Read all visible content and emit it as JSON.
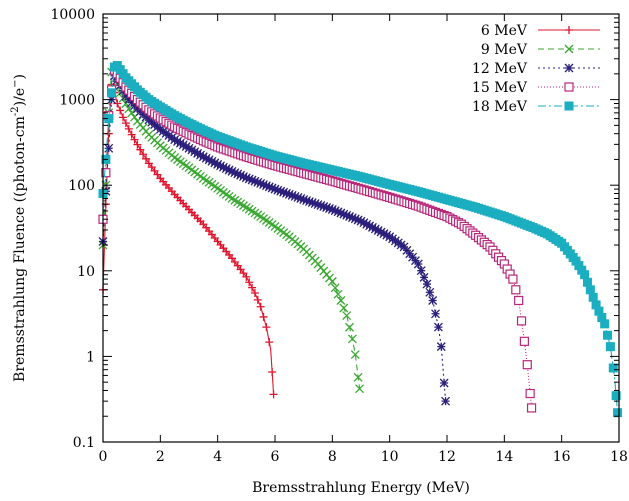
{
  "chart_data": {
    "type": "line",
    "xlabel": "Bremsstrahlung Energy (MeV)",
    "ylabel_parts": [
      "Bremsstrahlung Fluence ((photon-cm",
      "-2",
      ")/e",
      "−",
      ")"
    ],
    "xlim": [
      0,
      18
    ],
    "ylim": [
      0.1,
      10000
    ],
    "yscale": "log",
    "grid": false,
    "legend_position": "top-right",
    "x_ticks": [
      "0",
      "2",
      "4",
      "6",
      "8",
      "10",
      "12",
      "14",
      "16",
      "18"
    ],
    "y_ticks": [
      "0.1",
      "1",
      "10",
      "100",
      "1000",
      "10000"
    ],
    "series": [
      {
        "name": "6 MeV",
        "color": "#e0142c",
        "marker": "plus",
        "dash": "",
        "points": [
          [
            0,
            6
          ],
          [
            0.1,
            60
          ],
          [
            0.2,
            400
          ],
          [
            0.3,
            1500
          ],
          [
            0.35,
            1400
          ],
          [
            0.5,
            900
          ],
          [
            0.7,
            620
          ],
          [
            1.0,
            390
          ],
          [
            1.3,
            260
          ],
          [
            1.6,
            180
          ],
          [
            2.0,
            120
          ],
          [
            2.5,
            78
          ],
          [
            3.0,
            52
          ],
          [
            3.5,
            35
          ],
          [
            4.0,
            22
          ],
          [
            4.5,
            14
          ],
          [
            5.0,
            8.5
          ],
          [
            5.3,
            5.5
          ],
          [
            5.5,
            3.8
          ],
          [
            5.7,
            2.2
          ],
          [
            5.85,
            1.2
          ],
          [
            5.95,
            0.36
          ]
        ]
      },
      {
        "name": "9 MeV",
        "color": "#3aa832",
        "marker": "cross",
        "dash": "6,4",
        "points": [
          [
            0,
            20
          ],
          [
            0.1,
            100
          ],
          [
            0.2,
            700
          ],
          [
            0.3,
            2100
          ],
          [
            0.4,
            1900
          ],
          [
            0.6,
            1200
          ],
          [
            0.9,
            780
          ],
          [
            1.2,
            560
          ],
          [
            1.6,
            390
          ],
          [
            2.0,
            290
          ],
          [
            2.5,
            210
          ],
          [
            3.0,
            160
          ],
          [
            3.5,
            120
          ],
          [
            4.0,
            92
          ],
          [
            4.5,
            70
          ],
          [
            5.0,
            55
          ],
          [
            5.5,
            43
          ],
          [
            6.0,
            33
          ],
          [
            6.5,
            25
          ],
          [
            7.0,
            18
          ],
          [
            7.5,
            12
          ],
          [
            8.0,
            7.5
          ],
          [
            8.3,
            4.5
          ],
          [
            8.5,
            3.0
          ],
          [
            8.7,
            1.6
          ],
          [
            8.8,
            1.05
          ],
          [
            8.95,
            0.42
          ]
        ]
      },
      {
        "name": "12 MeV",
        "color": "#2a1f7a",
        "marker": "star",
        "dash": "2,3",
        "points": [
          [
            0,
            22
          ],
          [
            0.1,
            85
          ],
          [
            0.2,
            270
          ],
          [
            0.3,
            1000
          ],
          [
            0.4,
            1900
          ],
          [
            0.5,
            1700
          ],
          [
            0.8,
            1100
          ],
          [
            1.2,
            780
          ],
          [
            1.6,
            580
          ],
          [
            2.0,
            450
          ],
          [
            2.5,
            340
          ],
          [
            3.0,
            270
          ],
          [
            3.5,
            215
          ],
          [
            4.0,
            175
          ],
          [
            4.5,
            145
          ],
          [
            5.0,
            122
          ],
          [
            6.0,
            90
          ],
          [
            7.0,
            68
          ],
          [
            8.0,
            52
          ],
          [
            9.0,
            38
          ],
          [
            10.0,
            25
          ],
          [
            10.5,
            19
          ],
          [
            11.0,
            12
          ],
          [
            11.3,
            7
          ],
          [
            11.5,
            4.5
          ],
          [
            11.7,
            2.2
          ],
          [
            11.8,
            1.3
          ],
          [
            11.95,
            0.3
          ]
        ]
      },
      {
        "name": "15 MeV",
        "color": "#b8287a",
        "marker": "square-open",
        "dash": "1,2",
        "points": [
          [
            0,
            40
          ],
          [
            0.1,
            140
          ],
          [
            0.2,
            650
          ],
          [
            0.3,
            1300
          ],
          [
            0.4,
            2200
          ],
          [
            0.5,
            2000
          ],
          [
            0.8,
            1400
          ],
          [
            1.2,
            1000
          ],
          [
            1.6,
            760
          ],
          [
            2.0,
            610
          ],
          [
            2.5,
            480
          ],
          [
            3.0,
            395
          ],
          [
            3.5,
            330
          ],
          [
            4.0,
            280
          ],
          [
            5.0,
            215
          ],
          [
            6.0,
            170
          ],
          [
            7.0,
            138
          ],
          [
            8.0,
            112
          ],
          [
            9.0,
            90
          ],
          [
            10.0,
            72
          ],
          [
            11.0,
            57
          ],
          [
            12.0,
            43
          ],
          [
            12.5,
            35
          ],
          [
            13.0,
            26
          ],
          [
            13.5,
            19
          ],
          [
            14.0,
            12
          ],
          [
            14.3,
            8
          ],
          [
            14.5,
            4.5
          ],
          [
            14.7,
            1.5
          ],
          [
            14.8,
            0.8
          ],
          [
            14.95,
            0.25
          ]
        ]
      },
      {
        "name": "18 MeV",
        "color": "#1aaec0",
        "marker": "square-filled",
        "dash": "8,3,2,3",
        "points": [
          [
            0,
            80
          ],
          [
            0.1,
            200
          ],
          [
            0.2,
            600
          ],
          [
            0.3,
            1200
          ],
          [
            0.4,
            2400
          ],
          [
            0.5,
            2500
          ],
          [
            0.8,
            1800
          ],
          [
            1.2,
            1300
          ],
          [
            1.6,
            1000
          ],
          [
            2.0,
            820
          ],
          [
            2.5,
            650
          ],
          [
            3.0,
            530
          ],
          [
            3.5,
            440
          ],
          [
            4.0,
            370
          ],
          [
            5.0,
            280
          ],
          [
            6.0,
            220
          ],
          [
            7.0,
            180
          ],
          [
            8.0,
            150
          ],
          [
            9.0,
            125
          ],
          [
            10.0,
            102
          ],
          [
            11.0,
            84
          ],
          [
            12.0,
            68
          ],
          [
            13.0,
            55
          ],
          [
            14.0,
            43
          ],
          [
            15.0,
            32
          ],
          [
            15.5,
            27
          ],
          [
            16.0,
            21
          ],
          [
            16.5,
            13
          ],
          [
            16.8,
            9
          ],
          [
            17.0,
            6
          ],
          [
            17.2,
            4
          ],
          [
            17.5,
            2.4
          ],
          [
            17.7,
            1.3
          ],
          [
            17.85,
            0.55
          ],
          [
            17.95,
            0.22
          ]
        ]
      }
    ]
  }
}
